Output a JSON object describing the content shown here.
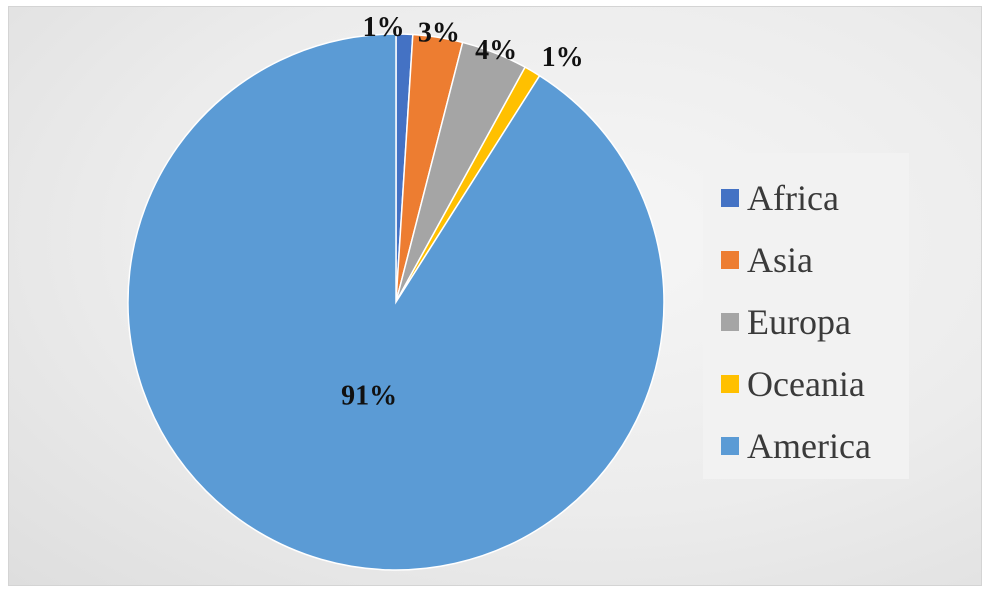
{
  "chart_data": {
    "type": "pie",
    "categories": [
      "Africa",
      "Asia",
      "Europa",
      "Oceania",
      "America"
    ],
    "values": [
      1,
      3,
      4,
      1,
      91
    ],
    "data_labels": [
      "1%",
      "3%",
      "4%",
      "1%",
      "91%"
    ],
    "colors": [
      "#4472c4",
      "#ed7d31",
      "#a5a5a5",
      "#ffc000",
      "#5b9bd5"
    ],
    "start_angle_deg": 0,
    "direction": "clockwise",
    "legend_position": "right",
    "title": ""
  }
}
